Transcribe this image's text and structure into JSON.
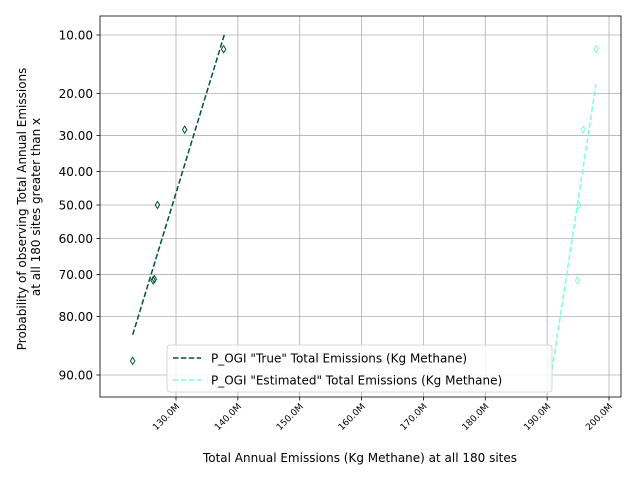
{
  "chart_data": {
    "type": "scatter",
    "xlabel": "Total Annual Emissions (Kg Methane) at all 180 sites",
    "ylabel_lines": [
      "Probability of observing Total Annual Emissions",
      "at all 180 sites greater than x"
    ],
    "x_ticks": [
      {
        "value": 130000000,
        "label": "130.0M"
      },
      {
        "value": 140000000,
        "label": "140.0M"
      },
      {
        "value": 150000000,
        "label": "150.0M"
      },
      {
        "value": 160000000,
        "label": "160.0M"
      },
      {
        "value": 170000000,
        "label": "170.0M"
      },
      {
        "value": 180000000,
        "label": "180.0M"
      },
      {
        "value": 190000000,
        "label": "190.0M"
      },
      {
        "value": 200000000,
        "label": "200.0M"
      }
    ],
    "y_ticks": [
      {
        "value": 10,
        "label": "10.00"
      },
      {
        "value": 20,
        "label": "20.00"
      },
      {
        "value": 30,
        "label": "30.00"
      },
      {
        "value": 40,
        "label": "40.00"
      },
      {
        "value": 50,
        "label": "50.00"
      },
      {
        "value": 60,
        "label": "60.00"
      },
      {
        "value": 70,
        "label": "70.00"
      },
      {
        "value": 80,
        "label": "80.00"
      },
      {
        "value": 90,
        "label": "90.00"
      }
    ],
    "y_scale": "probability",
    "y_inverted": true,
    "grid": true,
    "legend_position": "bottom-center",
    "series": [
      {
        "name": "P_OGI \"True\" Total Emissions (Kg Methane)",
        "color": "#00552b",
        "line_style": "dashed",
        "points": [
          {
            "x": 123000000,
            "y": 88
          },
          {
            "x": 126300000,
            "y": 71.5
          },
          {
            "x": 126500000,
            "y": 71.2
          },
          {
            "x": 127000000,
            "y": 50
          },
          {
            "x": 131400000,
            "y": 28.5
          },
          {
            "x": 137700000,
            "y": 12
          }
        ],
        "fit_line": [
          {
            "x": 123000000,
            "y": 83.6
          },
          {
            "x": 137800000,
            "y": 10.0
          }
        ]
      },
      {
        "name": "P_OGI \"Estimated\" Total Emissions (Kg Methane)",
        "color": "#7fffd4",
        "line_style": "dashed",
        "points": [
          {
            "x": 190400000,
            "y": 88
          },
          {
            "x": 194900000,
            "y": 71.5
          },
          {
            "x": 195100000,
            "y": 50
          },
          {
            "x": 195800000,
            "y": 28.5
          },
          {
            "x": 197900000,
            "y": 12
          }
        ],
        "fit_line": [
          {
            "x": 190400000,
            "y": 91.3
          },
          {
            "x": 197900000,
            "y": 18.1
          }
        ]
      }
    ]
  }
}
